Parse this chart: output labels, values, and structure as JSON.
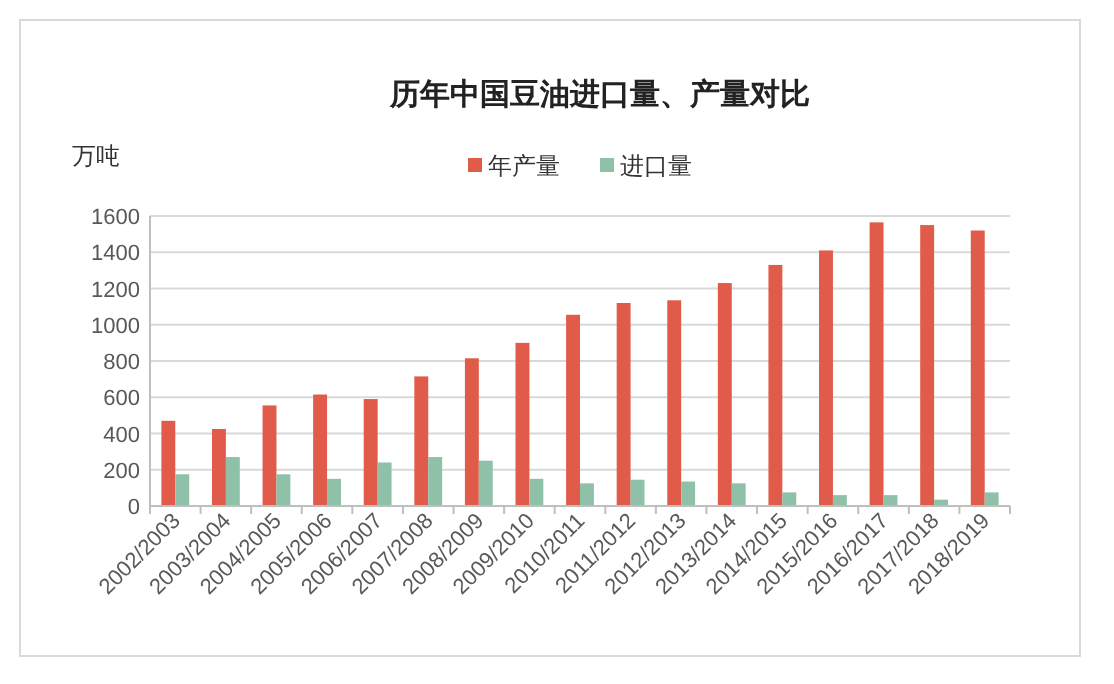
{
  "chart_data": {
    "type": "bar",
    "title": "历年中国豆油进口量、产量对比",
    "ylabel": "万吨",
    "categories": [
      "2002/2003",
      "2003/2004",
      "2004/2005",
      "2005/2006",
      "2006/2007",
      "2007/2008",
      "2008/2009",
      "2009/2010",
      "2010/2011",
      "2011/2012",
      "2012/2013",
      "2013/2014",
      "2014/2015",
      "2015/2016",
      "2016/2017",
      "2017/2018",
      "2018/2019"
    ],
    "series": [
      {
        "name": "年产量",
        "color": "#e15b4a",
        "values": [
          470,
          425,
          555,
          615,
          590,
          715,
          815,
          900,
          1055,
          1120,
          1135,
          1230,
          1330,
          1410,
          1565,
          1550,
          1520
        ]
      },
      {
        "name": "进口量",
        "color": "#8fc1a9",
        "values": [
          175,
          270,
          175,
          150,
          240,
          270,
          250,
          150,
          125,
          145,
          135,
          125,
          75,
          60,
          60,
          35,
          75
        ]
      }
    ],
    "ylim": [
      0,
      1600
    ],
    "yticks": [
      0,
      200,
      400,
      600,
      800,
      1000,
      1200,
      1400,
      1600
    ],
    "grid": "y",
    "legend": "top"
  }
}
